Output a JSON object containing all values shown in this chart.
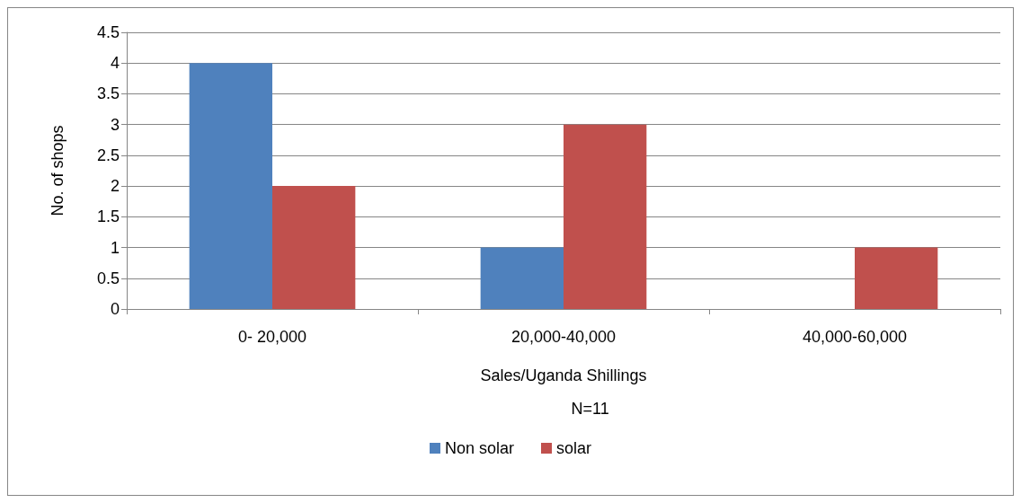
{
  "chart_data": {
    "type": "bar",
    "xlabel": "Sales/Uganda Shillings",
    "ylabel": "No. of shops",
    "annotations": [
      "N=11"
    ],
    "categories": [
      "0- 20,000",
      "20,000-40,000",
      "40,000-60,000"
    ],
    "series": [
      {
        "name": "Non solar",
        "color": "#4f81bd",
        "values": [
          4,
          1,
          0
        ]
      },
      {
        "name": "solar",
        "color": "#c0504d",
        "values": [
          2,
          3,
          1
        ]
      }
    ],
    "ylim": [
      0,
      4.5
    ],
    "yticks": [
      0,
      0.5,
      1,
      1.5,
      2,
      2.5,
      3,
      3.5,
      4,
      4.5
    ],
    "grid": "y",
    "legend": "bottom"
  }
}
